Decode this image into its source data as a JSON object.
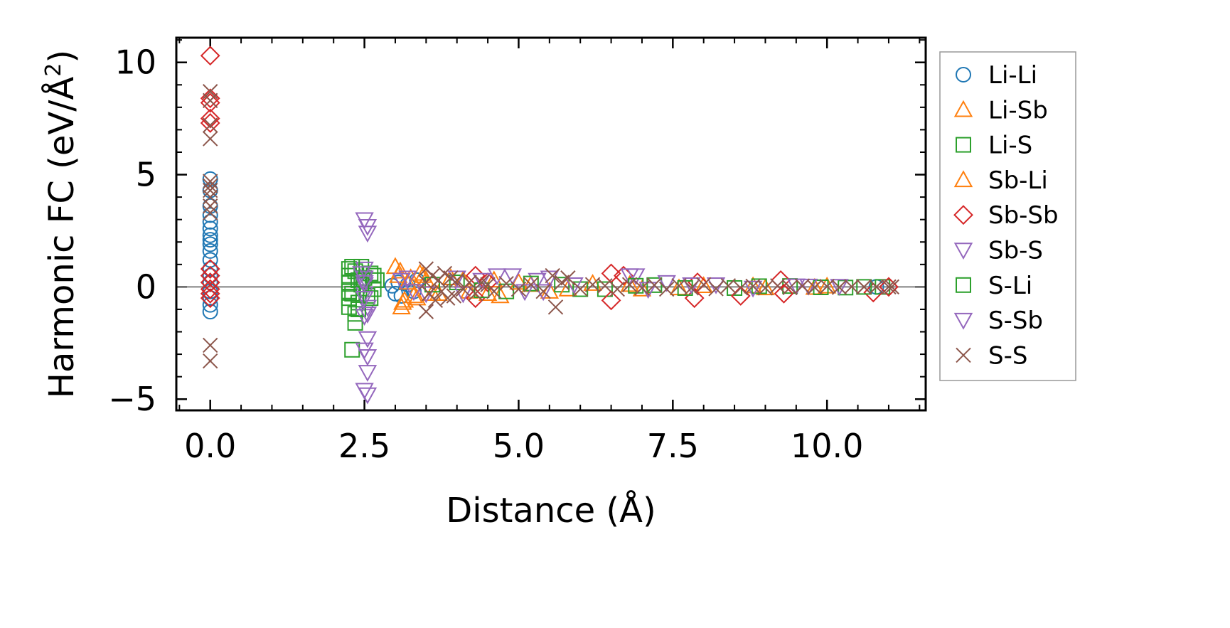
{
  "chart_data": {
    "type": "scatter",
    "xlabel": "Distance (Å)",
    "ylabel_prefix": "Harmonic FC (eV/Å",
    "ylabel_sup": "2",
    "ylabel_suffix": ")",
    "xlim": [
      -0.55,
      11.6
    ],
    "ylim": [
      -5.5,
      11.1
    ],
    "xticks": [
      0.0,
      2.5,
      5.0,
      7.5,
      10.0
    ],
    "xtick_labels": [
      "0.0",
      "2.5",
      "5.0",
      "7.5",
      "10.0"
    ],
    "yticks": [
      -5,
      0,
      5,
      10
    ],
    "ytick_labels": [
      "−5",
      "0",
      "5",
      "10"
    ],
    "grid": false,
    "zero_line": true,
    "legend_position": "outside right",
    "series": [
      {
        "name": "Li-Li",
        "marker": "circle",
        "color": "#1f77b4",
        "points": [
          [
            0,
            4.8
          ],
          [
            0,
            4.3
          ],
          [
            0,
            3.6
          ],
          [
            0,
            3.2
          ],
          [
            0,
            2.9
          ],
          [
            0,
            2.6
          ],
          [
            0,
            2.3
          ],
          [
            0,
            2.1
          ],
          [
            0,
            1.9
          ],
          [
            0,
            1.6
          ],
          [
            0,
            1.2
          ],
          [
            0,
            0.8
          ],
          [
            0,
            0.5
          ],
          [
            0,
            0.2
          ],
          [
            0,
            -0.2
          ],
          [
            0,
            -0.5
          ],
          [
            0,
            -0.8
          ],
          [
            0,
            -1.1
          ],
          [
            2.95,
            0.05
          ],
          [
            3.0,
            -0.3
          ],
          [
            3.05,
            0.2
          ],
          [
            3.1,
            -0.4
          ],
          [
            3.2,
            0.1
          ],
          [
            3.3,
            -0.2
          ],
          [
            3.35,
            0.3
          ],
          [
            10.8,
            0.0
          ]
        ]
      },
      {
        "name": "Li-Sb",
        "marker": "triangle-up",
        "color": "#ff7f0e",
        "points": [
          [
            3.0,
            0.9
          ],
          [
            3.05,
            0.5
          ],
          [
            3.1,
            -0.9
          ],
          [
            3.15,
            -0.6
          ],
          [
            3.2,
            0.2
          ],
          [
            3.3,
            -0.4
          ],
          [
            3.4,
            0.6
          ],
          [
            3.5,
            0.3
          ],
          [
            3.6,
            -0.3
          ],
          [
            3.9,
            0.4
          ],
          [
            4.2,
            -0.2
          ],
          [
            4.6,
            0.3
          ],
          [
            4.7,
            -0.4
          ],
          [
            5.2,
            0.1
          ],
          [
            5.5,
            -0.2
          ],
          [
            6.2,
            0.15
          ],
          [
            7.0,
            -0.1
          ],
          [
            8.0,
            0.05
          ],
          [
            9.0,
            -0.05
          ],
          [
            10.0,
            0.03
          ]
        ]
      },
      {
        "name": "Li-S",
        "marker": "square",
        "color": "#2ca02c",
        "points": [
          [
            2.25,
            0.8
          ],
          [
            2.25,
            0.5
          ],
          [
            2.25,
            0.2
          ],
          [
            2.25,
            -0.2
          ],
          [
            2.25,
            -0.5
          ],
          [
            2.25,
            -0.9
          ],
          [
            2.3,
            -2.8
          ],
          [
            2.35,
            -1.6
          ],
          [
            2.35,
            -1.2
          ],
          [
            2.35,
            0.7
          ],
          [
            2.4,
            0.3
          ],
          [
            2.4,
            -0.7
          ],
          [
            2.45,
            0.9
          ],
          [
            2.5,
            0.4
          ],
          [
            2.55,
            -0.4
          ],
          [
            2.6,
            0.6
          ],
          [
            2.65,
            -0.1
          ],
          [
            2.7,
            0.3
          ],
          [
            4.0,
            0.2
          ],
          [
            4.8,
            -0.2
          ],
          [
            5.7,
            0.1
          ],
          [
            6.4,
            -0.1
          ],
          [
            7.2,
            0.08
          ],
          [
            8.5,
            -0.05
          ],
          [
            9.4,
            0.04
          ],
          [
            10.3,
            -0.03
          ],
          [
            10.9,
            0.0
          ]
        ]
      },
      {
        "name": "Sb-Li",
        "marker": "triangle-up",
        "color": "#ff7f0e",
        "points": [
          [
            3.08,
            0.7
          ],
          [
            3.12,
            -0.7
          ],
          [
            3.25,
            0.4
          ],
          [
            3.35,
            -0.5
          ],
          [
            3.45,
            0.5
          ],
          [
            3.7,
            -0.3
          ],
          [
            4.1,
            0.3
          ],
          [
            4.5,
            -0.3
          ],
          [
            5.0,
            0.2
          ],
          [
            5.8,
            -0.1
          ],
          [
            6.8,
            0.1
          ],
          [
            7.6,
            -0.05
          ],
          [
            8.8,
            0.04
          ],
          [
            9.8,
            -0.03
          ]
        ]
      },
      {
        "name": "Sb-Sb",
        "marker": "diamond",
        "color": "#d62728",
        "points": [
          [
            0,
            10.3
          ],
          [
            0,
            8.4
          ],
          [
            0,
            8.2
          ],
          [
            0,
            7.5
          ],
          [
            0,
            7.3
          ],
          [
            0,
            0.8
          ],
          [
            0,
            0.5
          ],
          [
            0,
            0.2
          ],
          [
            0,
            -0.1
          ],
          [
            0,
            -0.3
          ],
          [
            0,
            -0.5
          ],
          [
            4.3,
            0.5
          ],
          [
            4.3,
            -0.5
          ],
          [
            4.5,
            0.2
          ],
          [
            6.5,
            0.6
          ],
          [
            6.5,
            -0.6
          ],
          [
            6.7,
            0.5
          ],
          [
            7.85,
            -0.5
          ],
          [
            7.9,
            0.2
          ],
          [
            8.6,
            -0.4
          ],
          [
            9.25,
            0.3
          ],
          [
            9.3,
            -0.3
          ],
          [
            10.75,
            -0.25
          ],
          [
            11.0,
            0.0
          ]
        ]
      },
      {
        "name": "Sb-S",
        "marker": "triangle-down",
        "color": "#9467bd",
        "points": [
          [
            2.5,
            3.0
          ],
          [
            2.55,
            2.7
          ],
          [
            2.55,
            2.4
          ],
          [
            2.5,
            0.8
          ],
          [
            2.5,
            0.4
          ],
          [
            2.5,
            0.1
          ],
          [
            2.5,
            -0.3
          ],
          [
            2.55,
            -0.9
          ],
          [
            2.5,
            -1.3
          ],
          [
            2.55,
            -2.3
          ],
          [
            2.5,
            -2.8
          ],
          [
            2.55,
            -3.1
          ],
          [
            2.55,
            -3.8
          ],
          [
            2.5,
            -4.6
          ],
          [
            2.55,
            -4.8
          ],
          [
            3.1,
            0.3
          ],
          [
            3.3,
            -0.2
          ],
          [
            4.0,
            0.4
          ],
          [
            4.1,
            -0.3
          ],
          [
            4.65,
            0.5
          ],
          [
            4.9,
            0.5
          ],
          [
            5.3,
            0.3
          ],
          [
            5.4,
            -0.2
          ],
          [
            6.8,
            0.5
          ],
          [
            6.9,
            0.5
          ],
          [
            7.4,
            0.2
          ],
          [
            8.2,
            0.1
          ],
          [
            9.5,
            0.05
          ],
          [
            10.2,
            0.03
          ]
        ]
      },
      {
        "name": "S-Li",
        "marker": "square",
        "color": "#2ca02c",
        "points": [
          [
            2.3,
            0.9
          ],
          [
            2.3,
            -0.3
          ],
          [
            2.4,
            -1.0
          ],
          [
            2.45,
            0.1
          ],
          [
            2.6,
            -0.5
          ],
          [
            2.65,
            0.5
          ],
          [
            3.6,
            0.1
          ],
          [
            4.4,
            -0.15
          ],
          [
            5.2,
            0.15
          ],
          [
            6.0,
            -0.1
          ],
          [
            6.9,
            0.05
          ],
          [
            7.7,
            -0.05
          ],
          [
            8.9,
            0.03
          ],
          [
            9.9,
            -0.02
          ],
          [
            10.6,
            0.0
          ]
        ]
      },
      {
        "name": "S-Sb",
        "marker": "triangle-down",
        "color": "#9467bd",
        "points": [
          [
            2.45,
            0.6
          ],
          [
            2.5,
            0.2
          ],
          [
            2.5,
            -0.5
          ],
          [
            2.55,
            -1.2
          ],
          [
            3.2,
            0.4
          ],
          [
            3.5,
            -0.3
          ],
          [
            4.4,
            0.3
          ],
          [
            5.1,
            -0.2
          ],
          [
            5.5,
            0.4
          ],
          [
            5.9,
            0.1
          ],
          [
            7.1,
            -0.1
          ],
          [
            7.8,
            0.1
          ],
          [
            8.8,
            -0.05
          ],
          [
            9.7,
            0.04
          ]
        ]
      },
      {
        "name": "S-S",
        "marker": "x",
        "color": "#8c564b",
        "points": [
          [
            0,
            8.7
          ],
          [
            0,
            8.3
          ],
          [
            0,
            7.2
          ],
          [
            0,
            6.6
          ],
          [
            0,
            4.7
          ],
          [
            0,
            4.5
          ],
          [
            0,
            4.3
          ],
          [
            0,
            4.0
          ],
          [
            0,
            3.6
          ],
          [
            0,
            3.3
          ],
          [
            0,
            -2.6
          ],
          [
            0,
            -3.3
          ],
          [
            3.5,
            0.8
          ],
          [
            3.5,
            0.2
          ],
          [
            3.5,
            -1.1
          ],
          [
            3.55,
            -0.3
          ],
          [
            3.6,
            0.5
          ],
          [
            3.65,
            -0.6
          ],
          [
            3.7,
            0.3
          ],
          [
            3.75,
            -0.2
          ],
          [
            3.8,
            0.6
          ],
          [
            3.85,
            -0.5
          ],
          [
            3.9,
            0.4
          ],
          [
            3.95,
            -0.4
          ],
          [
            4.0,
            0.3
          ],
          [
            4.1,
            -0.1
          ],
          [
            4.2,
            0.2
          ],
          [
            4.3,
            -0.3
          ],
          [
            4.4,
            0.2
          ],
          [
            4.5,
            0.1
          ],
          [
            4.6,
            -0.2
          ],
          [
            4.8,
            0.15
          ],
          [
            5.0,
            -0.1
          ],
          [
            5.2,
            0.1
          ],
          [
            5.4,
            -0.2
          ],
          [
            5.55,
            0.5
          ],
          [
            5.6,
            -0.9
          ],
          [
            5.7,
            0.2
          ],
          [
            5.8,
            0.4
          ],
          [
            6.0,
            -0.1
          ],
          [
            6.2,
            0.1
          ],
          [
            6.4,
            0.05
          ],
          [
            6.6,
            -0.1
          ],
          [
            6.8,
            0.1
          ],
          [
            7.0,
            -0.05
          ],
          [
            7.2,
            0.08
          ],
          [
            7.4,
            -0.1
          ],
          [
            7.6,
            0.05
          ],
          [
            7.8,
            -0.05
          ],
          [
            8.0,
            0.1
          ],
          [
            8.2,
            -0.08
          ],
          [
            8.4,
            0.05
          ],
          [
            8.6,
            -0.05
          ],
          [
            8.8,
            0.03
          ],
          [
            9.0,
            -0.05
          ],
          [
            9.2,
            0.05
          ],
          [
            9.4,
            -0.03
          ],
          [
            9.6,
            0.04
          ],
          [
            9.8,
            -0.02
          ],
          [
            10.0,
            0.02
          ],
          [
            10.2,
            -0.02
          ],
          [
            10.4,
            0.01
          ],
          [
            10.6,
            0.0
          ],
          [
            10.8,
            0.0
          ],
          [
            11.0,
            0.0
          ],
          [
            11.05,
            0.0
          ]
        ]
      }
    ]
  }
}
